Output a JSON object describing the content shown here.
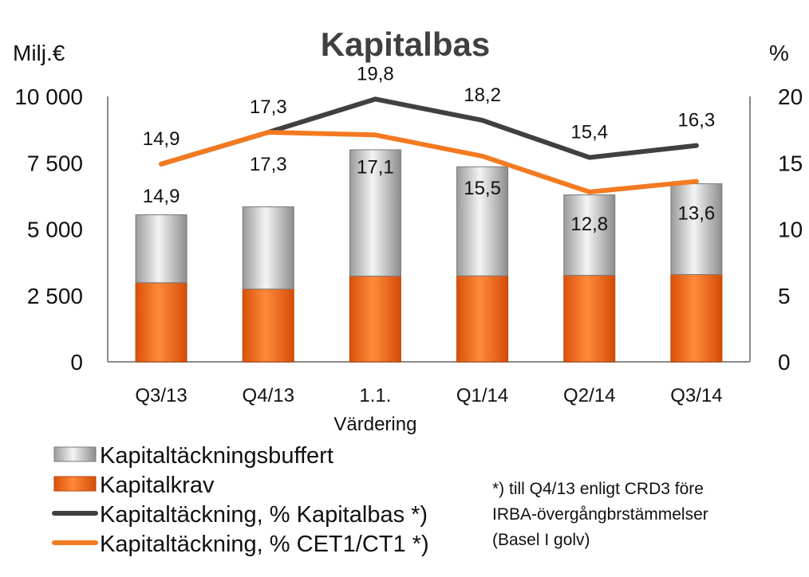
{
  "chart_data": {
    "type": "bar",
    "title": "Kapitalbas",
    "ylabel_left": "Milj.€",
    "ylabel_right": "%",
    "categories": [
      "Q3/13",
      "Q4/13",
      "1.1.",
      "Q1/14",
      "Q2/14",
      "Q3/14"
    ],
    "category_sublabels": [
      "",
      "",
      "Värdering",
      "",
      "",
      ""
    ],
    "ylim_left": [
      0,
      10000
    ],
    "ylim_right": [
      0,
      20
    ],
    "yticks_left": [
      "0",
      "2 500",
      "5 000",
      "7 500",
      "10 000"
    ],
    "yticks_right": [
      "0",
      "5",
      "10",
      "15",
      "20"
    ],
    "grid": false,
    "stacked_bars": [
      {
        "name": "Kapitalkrav",
        "values": [
          2980,
          2740,
          3230,
          3240,
          3260,
          3290
        ],
        "color": "#F26A1B",
        "axis": "left"
      },
      {
        "name": "Kapitaltäckningsbuffert",
        "values": [
          2560,
          3100,
          4760,
          4110,
          3030,
          3420
        ],
        "color": "#BDBDBD",
        "axis": "left"
      }
    ],
    "lines": [
      {
        "name": "Kapitaltäckning, % Kapitalbas *)",
        "values": [
          14.9,
          17.3,
          19.8,
          18.2,
          15.4,
          16.3
        ],
        "labels": [
          "14,9",
          "17,3",
          "19,8",
          "18,2",
          "15,4",
          "16,3"
        ],
        "color": "#404040",
        "axis": "right"
      },
      {
        "name": "Kapitaltäckning, %  CET1/CT1 *)",
        "values": [
          14.9,
          17.3,
          17.1,
          15.5,
          12.8,
          13.6
        ],
        "labels": [
          "14,9",
          "17,3",
          "17,1",
          "15,5",
          "12,8",
          "13,6"
        ],
        "color": "#F47A22",
        "axis": "right"
      }
    ],
    "legend": [
      {
        "label": "Kapitaltäckningsbuffert",
        "kind": "bar",
        "color": "#BDBDBD"
      },
      {
        "label": "Kapitalkrav",
        "kind": "bar",
        "color": "#F26A1B"
      },
      {
        "label": "Kapitaltäckning, % Kapitalbas *)",
        "kind": "line",
        "color": "#404040"
      },
      {
        "label": "Kapitaltäckning, %  CET1/CT1 *)",
        "kind": "line",
        "color": "#F47A22"
      }
    ],
    "legend_position": "bottom-left"
  },
  "footnote": [
    "*) till Q4/13 enligt CRD3 före",
    "IRBA-övergångbrstämmelser",
    "(Basel I golv)"
  ]
}
